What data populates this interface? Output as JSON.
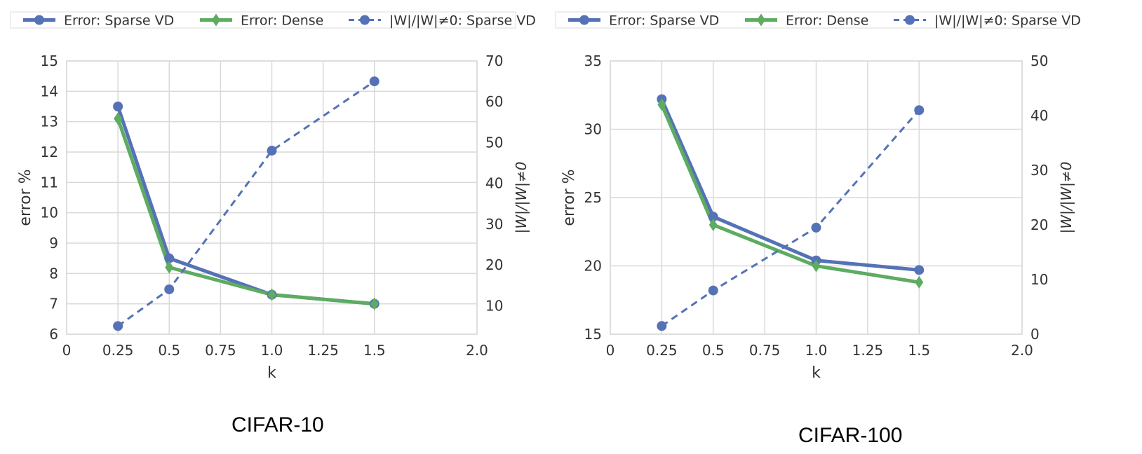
{
  "captions": [
    "CIFAR-10",
    "CIFAR-100"
  ],
  "colors": {
    "sparse": "#5572b6",
    "dense": "#5eab62",
    "grid": "#d9d9d9",
    "axis_text": "#333333"
  },
  "chart_data": [
    {
      "type": "line",
      "caption": "CIFAR-10",
      "x": [
        0.25,
        0.5,
        1.0,
        1.5
      ],
      "xlim": [
        0,
        2.0
      ],
      "xticks": [
        "0",
        "0.25",
        "0.5",
        "0.75",
        "1.0",
        "1.25",
        "1.5",
        "2.0"
      ],
      "xlabel": "k",
      "ylabel": "error %",
      "ylim": [
        6,
        15
      ],
      "yticks": [
        "6",
        "7",
        "8",
        "9",
        "10",
        "11",
        "12",
        "13",
        "14",
        "15"
      ],
      "y2label": "|W|/|W|≠0",
      "y2lim": [
        3,
        70
      ],
      "y2ticks": [
        "10",
        "20",
        "30",
        "40",
        "50",
        "60",
        "70"
      ],
      "grid": true,
      "legend_position": "top",
      "series": [
        {
          "name": "Error: Sparse VD",
          "axis": "left",
          "values": [
            13.5,
            8.5,
            7.3,
            7.0
          ],
          "color": "#5572b6",
          "marker": "circle",
          "style": "solid"
        },
        {
          "name": "Error: Dense",
          "axis": "left",
          "values": [
            13.1,
            8.2,
            7.3,
            7.0
          ],
          "color": "#5eab62",
          "marker": "diamond",
          "style": "solid"
        },
        {
          "name": "|W|/|W|≠0: Sparse VD",
          "axis": "right",
          "values": [
            5.0,
            14.0,
            48.0,
            65.0
          ],
          "color": "#5572b6",
          "marker": "circle",
          "style": "dashed"
        }
      ]
    },
    {
      "type": "line",
      "caption": "CIFAR-100",
      "x": [
        0.25,
        0.5,
        1.0,
        1.5
      ],
      "xlim": [
        0,
        2.0
      ],
      "xticks": [
        "0",
        "0.25",
        "0.5",
        "0.75",
        "1.0",
        "1.25",
        "1.5",
        "2.0"
      ],
      "xlabel": "k",
      "ylabel": "error %",
      "ylim": [
        15,
        35
      ],
      "yticks": [
        "15",
        "20",
        "25",
        "30",
        "35"
      ],
      "y2label": "|W|/|W|≠0",
      "y2lim": [
        0,
        50
      ],
      "y2ticks": [
        "0",
        "10",
        "20",
        "30",
        "40",
        "50"
      ],
      "grid": true,
      "legend_position": "top",
      "series": [
        {
          "name": "Error: Sparse VD",
          "axis": "left",
          "values": [
            32.2,
            23.6,
            20.4,
            19.7
          ],
          "color": "#5572b6",
          "marker": "circle",
          "style": "solid"
        },
        {
          "name": "Error: Dense",
          "axis": "left",
          "values": [
            31.8,
            23.0,
            20.0,
            18.8
          ],
          "color": "#5eab62",
          "marker": "diamond",
          "style": "solid"
        },
        {
          "name": "|W|/|W|≠0: Sparse VD",
          "axis": "right",
          "values": [
            1.5,
            8.0,
            19.5,
            41.0
          ],
          "color": "#5572b6",
          "marker": "circle",
          "style": "dashed"
        }
      ]
    }
  ]
}
